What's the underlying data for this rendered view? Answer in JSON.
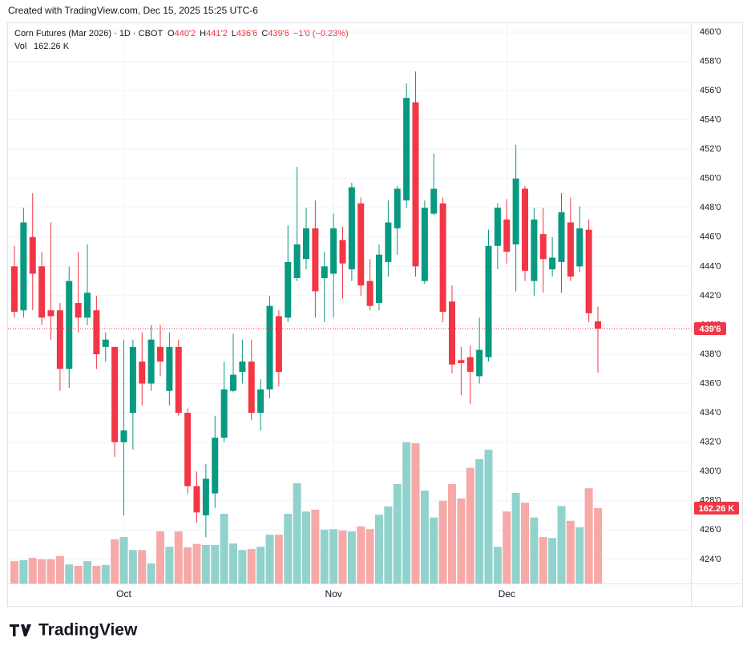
{
  "header": {
    "credit": "Created with TradingView.com, Dec 15, 2025 15:25 UTC-6"
  },
  "chart_data": {
    "type": "candlestick",
    "title": "Corn Futures (Mar 2026) · 1D · CBOT",
    "ohlc_legend": [
      {
        "key": "O",
        "value": "440'2"
      },
      {
        "key": "H",
        "value": "441'2"
      },
      {
        "key": "L",
        "value": "436'6"
      },
      {
        "key": "C",
        "value": "439'6"
      }
    ],
    "change": "−1'0 (−0.23%)",
    "volume_title": "Vol",
    "categories": [
      null,
      null,
      null,
      null,
      null,
      null,
      null,
      null,
      null,
      null,
      null,
      null,
      "Oct",
      null,
      null,
      null,
      null,
      null,
      null,
      null,
      null,
      null,
      null,
      null,
      null,
      null,
      null,
      null,
      null,
      null,
      null,
      null,
      null,
      null,
      null,
      "Nov",
      null,
      null,
      null,
      null,
      null,
      null,
      null,
      null,
      null,
      null,
      null,
      null,
      null,
      null,
      null,
      null,
      null,
      null,
      "Dec",
      null,
      null,
      null,
      null,
      null,
      null,
      null,
      null,
      null,
      null
    ],
    "open": [
      444,
      441,
      446,
      444,
      441,
      441,
      437,
      441.5,
      440.5,
      441,
      438.5,
      438.5,
      432,
      434,
      437.5,
      436,
      438.5,
      435.5,
      438.5,
      434,
      429,
      427,
      428.5,
      432.3,
      435.5,
      436.8,
      437.5,
      434,
      435.6,
      440.6,
      440.5,
      443.2,
      444.5,
      446.6,
      443.2,
      443.5,
      445.8,
      443.8,
      448.3,
      443,
      441.5,
      444.3,
      446.6,
      448.5,
      455.2,
      443,
      447.6,
      448.3,
      441.6,
      437.6,
      437.8,
      436.5,
      437.8,
      445.4,
      447.2,
      445.5,
      449.3,
      443,
      446.2,
      443.8,
      444.3,
      447,
      444,
      446.5,
      440.25
    ],
    "high": [
      445.4,
      448,
      449,
      445,
      447,
      441.5,
      444,
      445,
      445.5,
      442,
      439.5,
      438.5,
      439,
      439,
      439.5,
      440,
      440,
      439.5,
      439,
      434.3,
      430,
      430.5,
      433.8,
      437.5,
      439.4,
      439,
      439,
      436.3,
      442,
      441,
      446.8,
      450.8,
      448,
      448.5,
      445,
      447.6,
      446.7,
      449.7,
      448.7,
      444.5,
      445.5,
      448.5,
      449.5,
      456.5,
      457.3,
      448.5,
      451.7,
      448.7,
      442.7,
      438.5,
      438.6,
      440.5,
      446.5,
      448.3,
      448.6,
      452.3,
      449.5,
      448,
      448,
      446,
      449,
      448.7,
      448.1,
      447.2,
      441.25
    ],
    "low": [
      440.5,
      440.5,
      441,
      440,
      439,
      435.5,
      435.7,
      439.5,
      440,
      437,
      437.5,
      431,
      427,
      431.5,
      434.5,
      435.5,
      436.5,
      434.5,
      433.8,
      428.5,
      426.5,
      425.5,
      427.5,
      432,
      435.4,
      436,
      433.5,
      432.8,
      435,
      435.8,
      440.2,
      443,
      443.8,
      440.5,
      440.2,
      440.5,
      441.8,
      443,
      442,
      441,
      441,
      443.3,
      444.8,
      448,
      443.3,
      442.8,
      447.5,
      440.2,
      436.7,
      435.2,
      434.6,
      436,
      437.5,
      443.8,
      444.2,
      442.3,
      443,
      442,
      442.2,
      443.3,
      442.2,
      443,
      443.6,
      440.2,
      436.75
    ],
    "close": [
      440.9,
      447,
      443.5,
      440.5,
      440.6,
      437,
      443,
      440.5,
      442.2,
      438,
      439,
      432,
      432.8,
      438.5,
      436,
      439,
      437.5,
      438.5,
      434,
      429,
      427.2,
      429.5,
      432.3,
      435.6,
      436.6,
      437.5,
      434,
      435.6,
      441.3,
      436.8,
      444.3,
      445.5,
      446.6,
      442.3,
      444,
      446.6,
      444.2,
      449.4,
      442.7,
      441.3,
      444.8,
      447,
      449.3,
      455.5,
      444,
      448,
      449.3,
      440.9,
      437.3,
      437.4,
      436.8,
      438.3,
      445.4,
      448,
      445,
      450,
      443.7,
      447.2,
      444.5,
      444.6,
      447.7,
      443.3,
      446.6,
      440.8,
      439.75
    ],
    "volume": [
      48,
      50,
      55,
      52,
      52,
      59,
      41,
      38,
      48,
      38,
      40,
      95,
      100,
      72,
      72,
      43,
      112,
      79,
      112,
      78,
      85,
      83,
      83,
      150,
      86,
      72,
      74,
      79,
      105,
      105,
      150,
      216,
      155,
      159,
      116,
      117,
      114,
      112,
      123,
      117,
      148,
      166,
      214,
      304,
      302,
      200,
      142,
      178,
      214,
      183,
      249,
      268,
      288,
      79,
      155,
      195,
      174,
      142,
      100,
      98,
      167,
      135,
      121,
      205,
      162.26
    ],
    "up_color": "#089981",
    "down_color": "#f23645",
    "volume_up_color": "#92d2cc",
    "volume_down_color": "#f7a9a7",
    "ylim": [
      422.35,
      460.6
    ],
    "yticks": [
      {
        "value": 424,
        "label": "424'0"
      },
      {
        "value": 426,
        "label": "426'0"
      },
      {
        "value": 428,
        "label": "428'0"
      },
      {
        "value": 430,
        "label": "430'0"
      },
      {
        "value": 432,
        "label": "432'0"
      },
      {
        "value": 434,
        "label": "434'0"
      },
      {
        "value": 436,
        "label": "436'0"
      },
      {
        "value": 438,
        "label": "438'0"
      },
      {
        "value": 440,
        "label": "440'0"
      },
      {
        "value": 442,
        "label": "442'0"
      },
      {
        "value": 444,
        "label": "444'0"
      },
      {
        "value": 446,
        "label": "446'0"
      },
      {
        "value": 448,
        "label": "448'0"
      },
      {
        "value": 450,
        "label": "450'0"
      },
      {
        "value": 452,
        "label": "452'0"
      },
      {
        "value": 454,
        "label": "454'0"
      },
      {
        "value": 456,
        "label": "456'0"
      },
      {
        "value": 458,
        "label": "458'0"
      },
      {
        "value": 460,
        "label": "460'0"
      }
    ],
    "grid": true,
    "last_price": {
      "value": 439.75,
      "label": "439'6"
    },
    "last_volume": {
      "value": 162.26,
      "label": "162.26 K"
    }
  },
  "footer": {
    "logo": "TradingView"
  }
}
